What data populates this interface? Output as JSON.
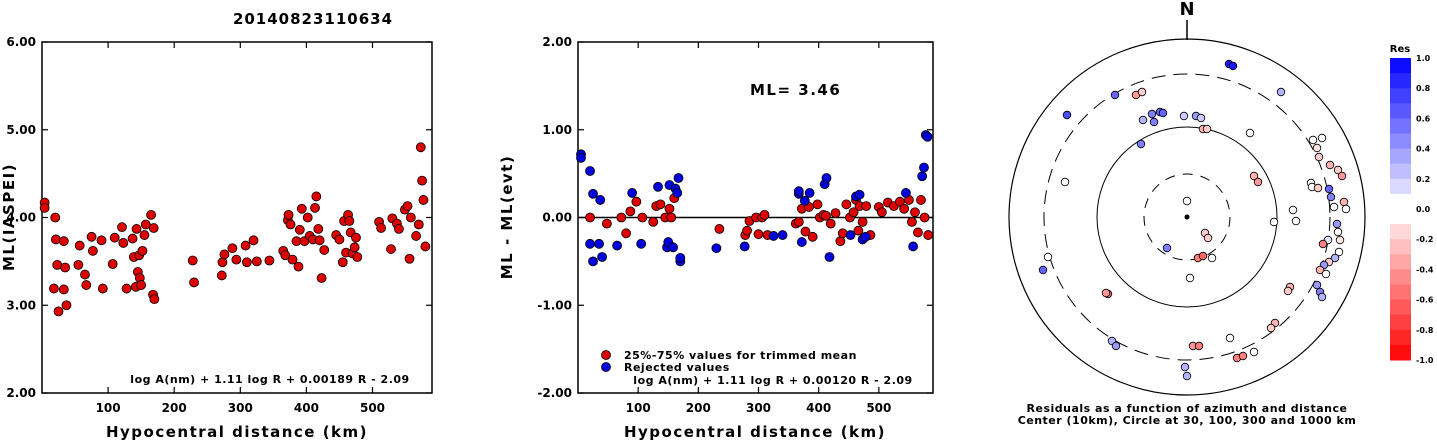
{
  "title": "20140823110634",
  "colors": {
    "accepted": "#dd0000",
    "rejected": "#0000dd",
    "ink": "#000000"
  },
  "chart_data": [
    {
      "type": "scatter",
      "title": "",
      "xlabel": "Hypocentral distance (km)",
      "ylabel": "ML(IASPEI)",
      "xlim": [
        0,
        590
      ],
      "ylim": [
        2.0,
        6.0
      ],
      "xticks": [
        "100",
        "200",
        "300",
        "400",
        "500"
      ],
      "yticks": [
        "2.00",
        "3.00",
        "4.00",
        "5.00",
        "6.00"
      ],
      "formula": "log A(nm) + 1.11 log R + 0.00189 R - 2.09",
      "points": [
        [
          4,
          4.17
        ],
        [
          4,
          4.11
        ],
        [
          18,
          3.19
        ],
        [
          20,
          4.0
        ],
        [
          21,
          3.75
        ],
        [
          23,
          3.46
        ],
        [
          25,
          2.93
        ],
        [
          33,
          3.73
        ],
        [
          33,
          3.18
        ],
        [
          35,
          3.43
        ],
        [
          37,
          3.0
        ],
        [
          55,
          3.46
        ],
        [
          57,
          3.68
        ],
        [
          65,
          3.35
        ],
        [
          67,
          3.23
        ],
        [
          75,
          3.78
        ],
        [
          77,
          3.62
        ],
        [
          90,
          3.74
        ],
        [
          92,
          3.19
        ],
        [
          107,
          3.47
        ],
        [
          110,
          3.77
        ],
        [
          121,
          3.89
        ],
        [
          123,
          3.71
        ],
        [
          128,
          3.19
        ],
        [
          137,
          3.76
        ],
        [
          139,
          3.55
        ],
        [
          142,
          3.21
        ],
        [
          143,
          3.87
        ],
        [
          145,
          3.38
        ],
        [
          147,
          3.57
        ],
        [
          148,
          3.31
        ],
        [
          150,
          3.23
        ],
        [
          152,
          3.62
        ],
        [
          155,
          3.8
        ],
        [
          157,
          3.92
        ],
        [
          165,
          4.03
        ],
        [
          168,
          3.12
        ],
        [
          169,
          3.88
        ],
        [
          170,
          3.07
        ],
        [
          228,
          3.51
        ],
        [
          230,
          3.26
        ],
        [
          272,
          3.34
        ],
        [
          273,
          3.49
        ],
        [
          276,
          3.58
        ],
        [
          288,
          3.65
        ],
        [
          294,
          3.52
        ],
        [
          308,
          3.68
        ],
        [
          310,
          3.49
        ],
        [
          320,
          3.74
        ],
        [
          325,
          3.5
        ],
        [
          344,
          3.51
        ],
        [
          365,
          3.62
        ],
        [
          368,
          3.57
        ],
        [
          372,
          3.97
        ],
        [
          373,
          4.03
        ],
        [
          376,
          3.92
        ],
        [
          379,
          3.52
        ],
        [
          385,
          3.73
        ],
        [
          388,
          3.44
        ],
        [
          390,
          3.86
        ],
        [
          393,
          4.1
        ],
        [
          397,
          3.73
        ],
        [
          402,
          4.0
        ],
        [
          405,
          3.79
        ],
        [
          410,
          3.75
        ],
        [
          413,
          4.11
        ],
        [
          415,
          4.24
        ],
        [
          418,
          3.87
        ],
        [
          420,
          3.74
        ],
        [
          423,
          3.31
        ],
        [
          427,
          3.63
        ],
        [
          445,
          3.8
        ],
        [
          450,
          3.75
        ],
        [
          455,
          3.49
        ],
        [
          457,
          3.96
        ],
        [
          460,
          3.6
        ],
        [
          463,
          4.03
        ],
        [
          465,
          3.96
        ],
        [
          467,
          3.83
        ],
        [
          470,
          3.59
        ],
        [
          473,
          3.66
        ],
        [
          475,
          3.77
        ],
        [
          477,
          3.55
        ],
        [
          510,
          3.95
        ],
        [
          513,
          3.88
        ],
        [
          528,
          3.64
        ],
        [
          530,
          3.99
        ],
        [
          537,
          3.93
        ],
        [
          540,
          3.87
        ],
        [
          549,
          4.09
        ],
        [
          553,
          4.13
        ],
        [
          556,
          3.53
        ],
        [
          558,
          4.0
        ],
        [
          566,
          3.79
        ],
        [
          570,
          3.92
        ],
        [
          573,
          4.8
        ],
        [
          575,
          4.42
        ],
        [
          577,
          4.2
        ],
        [
          580,
          3.67
        ]
      ]
    },
    {
      "type": "scatter",
      "title": "ML= 3.46",
      "xlabel": "Hypocentral distance (km)",
      "ylabel": "ML - ML(evt)",
      "xlim": [
        0,
        590
      ],
      "ylim": [
        -2.0,
        2.0
      ],
      "xticks": [
        "100",
        "200",
        "300",
        "400",
        "500"
      ],
      "yticks": [
        "-2.00",
        "-1.00",
        "0.00",
        "1.00",
        "2.00"
      ],
      "formula": "log A(nm) + 1.11 log R + 0.00120 R - 2.09",
      "legend": [
        "25%-75% values for trimmed mean",
        "Rejected values"
      ],
      "accepted": [
        [
          20,
          0.0
        ],
        [
          48,
          -0.07
        ],
        [
          72,
          0.0
        ],
        [
          80,
          -0.18
        ],
        [
          87,
          0.07
        ],
        [
          97,
          0.18
        ],
        [
          107,
          0.0
        ],
        [
          125,
          -0.05
        ],
        [
          130,
          0.13
        ],
        [
          137,
          0.15
        ],
        [
          145,
          0.0
        ],
        [
          152,
          0.1
        ],
        [
          155,
          0.0
        ],
        [
          160,
          0.22
        ],
        [
          235,
          -0.13
        ],
        [
          278,
          -0.2
        ],
        [
          281,
          -0.15
        ],
        [
          285,
          -0.04
        ],
        [
          296,
          0.0
        ],
        [
          300,
          -0.19
        ],
        [
          306,
          0.0
        ],
        [
          310,
          0.03
        ],
        [
          315,
          -0.2
        ],
        [
          362,
          -0.07
        ],
        [
          367,
          -0.05
        ],
        [
          372,
          0.1
        ],
        [
          378,
          -0.16
        ],
        [
          384,
          0.12
        ],
        [
          390,
          -0.22
        ],
        [
          398,
          0.15
        ],
        [
          402,
          0.0
        ],
        [
          408,
          0.03
        ],
        [
          412,
          0.02
        ],
        [
          420,
          -0.07
        ],
        [
          428,
          0.05
        ],
        [
          436,
          -0.27
        ],
        [
          440,
          -0.18
        ],
        [
          446,
          0.15
        ],
        [
          452,
          0.0
        ],
        [
          458,
          0.06
        ],
        [
          462,
          0.2
        ],
        [
          466,
          -0.15
        ],
        [
          468,
          0.13
        ],
        [
          473,
          -0.05
        ],
        [
          479,
          0.13
        ],
        [
          486,
          -0.2
        ],
        [
          500,
          0.12
        ],
        [
          505,
          0.06
        ],
        [
          515,
          0.17
        ],
        [
          525,
          0.13
        ],
        [
          535,
          0.18
        ],
        [
          542,
          0.1
        ],
        [
          550,
          0.2
        ],
        [
          555,
          -0.05
        ],
        [
          560,
          0.06
        ],
        [
          565,
          -0.17
        ],
        [
          570,
          0.2
        ],
        [
          576,
          0.0
        ],
        [
          582,
          -0.2
        ]
      ],
      "rejected": [
        [
          5,
          0.72
        ],
        [
          5,
          0.68
        ],
        [
          20,
          0.53
        ],
        [
          20,
          -0.3
        ],
        [
          25,
          -0.5
        ],
        [
          25,
          0.27
        ],
        [
          35,
          -0.3
        ],
        [
          37,
          0.2
        ],
        [
          40,
          -0.45
        ],
        [
          65,
          -0.32
        ],
        [
          90,
          0.28
        ],
        [
          105,
          -0.3
        ],
        [
          133,
          0.35
        ],
        [
          148,
          -0.34
        ],
        [
          150,
          -0.28
        ],
        [
          152,
          0.37
        ],
        [
          158,
          -0.34
        ],
        [
          162,
          0.33
        ],
        [
          165,
          0.28
        ],
        [
          167,
          0.45
        ],
        [
          170,
          -0.5
        ],
        [
          170,
          -0.46
        ],
        [
          230,
          -0.35
        ],
        [
          277,
          -0.33
        ],
        [
          325,
          -0.21
        ],
        [
          340,
          -0.2
        ],
        [
          367,
          0.27
        ],
        [
          367,
          0.3
        ],
        [
          372,
          -0.28
        ],
        [
          377,
          0.19
        ],
        [
          385,
          0.28
        ],
        [
          410,
          0.38
        ],
        [
          413,
          0.45
        ],
        [
          418,
          -0.45
        ],
        [
          453,
          -0.2
        ],
        [
          462,
          0.24
        ],
        [
          468,
          0.26
        ],
        [
          473,
          -0.25
        ],
        [
          478,
          -0.22
        ],
        [
          545,
          0.28
        ],
        [
          557,
          -0.33
        ],
        [
          572,
          0.47
        ],
        [
          575,
          0.57
        ],
        [
          578,
          0.94
        ],
        [
          581,
          0.92
        ]
      ]
    },
    {
      "type": "scatter",
      "title": "N",
      "caption1": "Residuals as a function of azimuth and distance",
      "caption2": "Center (10km), Circle at 30, 100, 300 and 1000 km",
      "colorbar_label": "Res",
      "colorbar_ticks": [
        "1.0",
        "0.8",
        "0.6",
        "0.4",
        "0.2",
        "0.0",
        "-0.2",
        "-0.4",
        "-0.6",
        "-0.8",
        "-1.0"
      ],
      "points": [
        [
          1229,
          64,
          0.9
        ],
        [
          1233,
          66,
          0.9
        ],
        [
          1067,
          115,
          0.7
        ],
        [
          1115,
          95,
          0.6
        ],
        [
          1136,
          95,
          -0.4
        ],
        [
          1142,
          92,
          -0.2
        ],
        [
          1143,
          120,
          0.3
        ],
        [
          1152,
          114,
          0.5
        ],
        [
          1154,
          122,
          0.5
        ],
        [
          1160,
          112,
          0.6
        ],
        [
          1163,
          113,
          0.6
        ],
        [
          1184,
          116,
          0.2
        ],
        [
          1196,
          116,
          0.4
        ],
        [
          1201,
          118,
          0.2
        ],
        [
          1203,
          129,
          -0.3
        ],
        [
          1207,
          129,
          -0.2
        ],
        [
          1250,
          133,
          0.0
        ],
        [
          1281,
          92,
          0.3
        ],
        [
          1141,
          144,
          0.5
        ],
        [
          1313,
          140,
          0.0
        ],
        [
          1322,
          138,
          0.0
        ],
        [
          1317,
          148,
          -0.1
        ],
        [
          1319,
          157,
          -0.2
        ],
        [
          1330,
          165,
          -0.3
        ],
        [
          1311,
          183,
          0.0
        ],
        [
          1312,
          187,
          0.0
        ],
        [
          1318,
          188,
          -0.2
        ],
        [
          1329,
          189,
          0.6
        ],
        [
          1331,
          197,
          0.5
        ],
        [
          1334,
          207,
          0.0
        ],
        [
          1338,
          170,
          -0.2
        ],
        [
          1342,
          176,
          -0.4
        ],
        [
          1344,
          202,
          -0.3
        ],
        [
          1346,
          209,
          0.0
        ],
        [
          1293,
          210,
          0.0
        ],
        [
          1296,
          221,
          0.0
        ],
        [
          1337,
          224,
          0.4
        ],
        [
          1338,
          232,
          0.0
        ],
        [
          1340,
          240,
          -0.1
        ],
        [
          1328,
          240,
          0.1
        ],
        [
          1323,
          244,
          -0.5
        ],
        [
          1339,
          252,
          0.0
        ],
        [
          1335,
          258,
          0.3
        ],
        [
          1329,
          262,
          -0.2
        ],
        [
          1324,
          265,
          0.4
        ],
        [
          1320,
          270,
          -0.3
        ],
        [
          1326,
          274,
          0.0
        ],
        [
          1317,
          285,
          0.4
        ],
        [
          1320,
          292,
          0.5
        ],
        [
          1322,
          297,
          0.3
        ],
        [
          1254,
          176,
          -0.3
        ],
        [
          1258,
          182,
          -0.4
        ],
        [
          1274,
          222,
          0.0
        ],
        [
          1290,
          287,
          -0.3
        ],
        [
          1288,
          291,
          -0.2
        ],
        [
          1275,
          323,
          -0.3
        ],
        [
          1271,
          328,
          -0.2
        ],
        [
          1230,
          338,
          0.0
        ],
        [
          1254,
          352,
          0.0
        ],
        [
          1193,
          346,
          -0.4
        ],
        [
          1199,
          346,
          -0.5
        ],
        [
          1237,
          358,
          -0.5
        ],
        [
          1243,
          356,
          -0.5
        ],
        [
          1185,
          367,
          0.3
        ],
        [
          1187,
          376,
          0.3
        ],
        [
          1108,
          294,
          -0.6
        ],
        [
          1106,
          293,
          -0.4
        ],
        [
          1112,
          341,
          0.3
        ],
        [
          1116,
          346,
          0.4
        ],
        [
          1048,
          257,
          0.0
        ],
        [
          1043,
          270,
          0.6
        ],
        [
          1065,
          182,
          0.0
        ],
        [
          1187,
          201,
          0.0
        ],
        [
          1205,
          233,
          -0.2
        ],
        [
          1208,
          238,
          -0.2
        ],
        [
          1167,
          248,
          0.5
        ],
        [
          1198,
          258,
          -0.5
        ],
        [
          1203,
          256,
          -0.6
        ],
        [
          1212,
          258,
          0.0
        ],
        [
          1190,
          278,
          0.0
        ]
      ]
    }
  ]
}
